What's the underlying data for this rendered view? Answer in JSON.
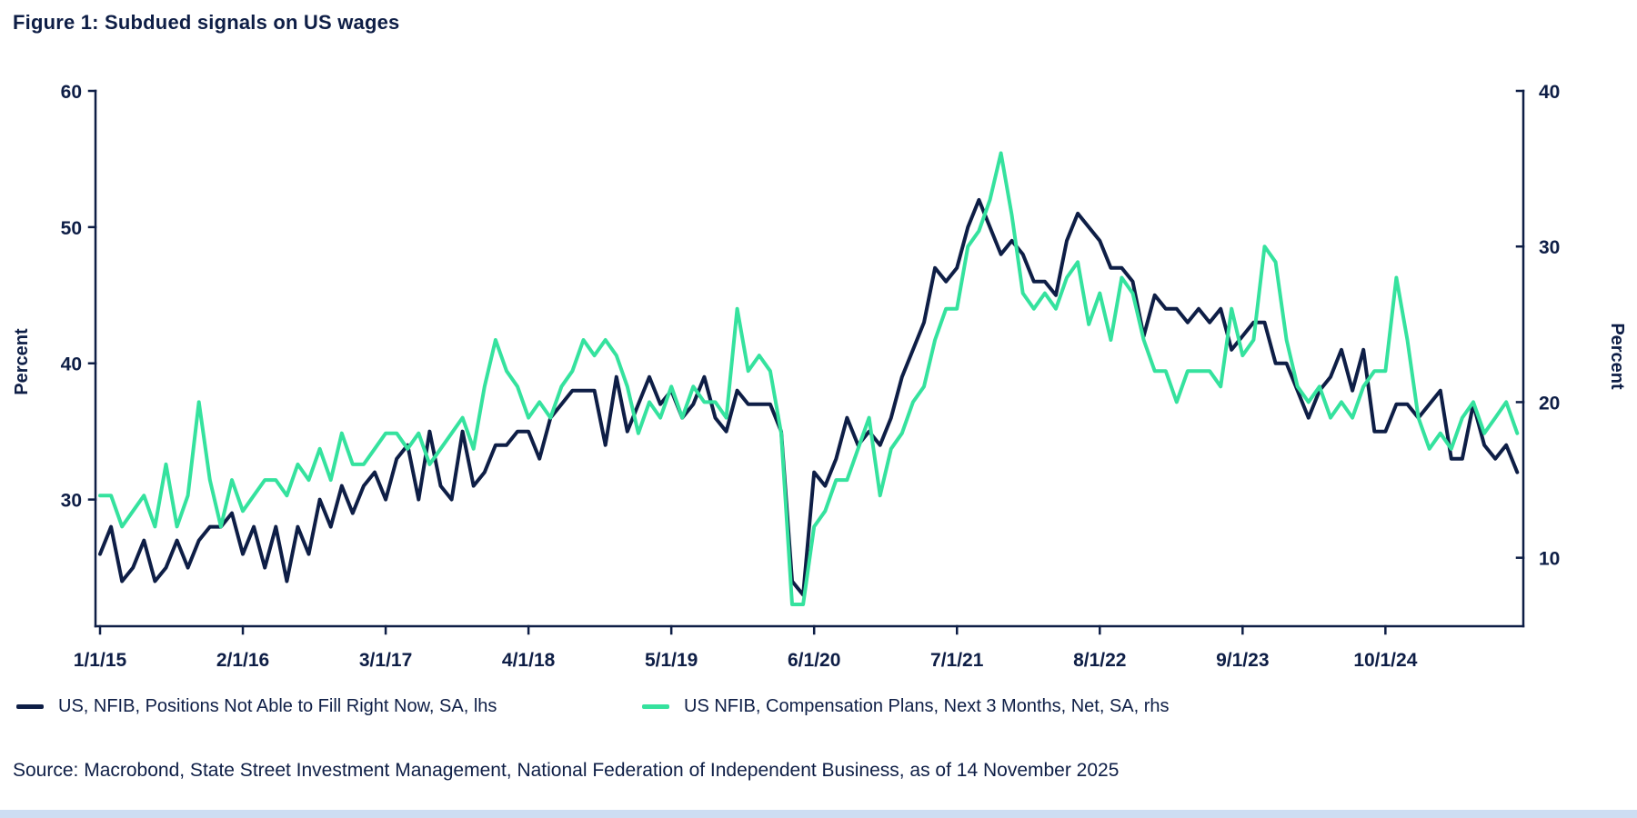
{
  "title": "Figure 1: Subdued signals on US wages",
  "source": "Source: Macrobond, State Street Investment Management, National Federation of Independent Business, as of 14 November 2025",
  "colors": {
    "navy": "#0e1e46",
    "green": "#35e29e",
    "text": "#0e1e46",
    "footer_bar": "#cdddf2"
  },
  "legend": [
    {
      "label": "US, NFIB, Positions Not Able to Fill Right Now, SA, lhs",
      "color": "#0e1e46"
    },
    {
      "label": "US NFIB, Compensation Plans, Next 3 Months, Net, SA, rhs",
      "color": "#35e29e"
    }
  ],
  "chart_data": {
    "type": "line",
    "title": "Figure 1: Subdued signals on US wages",
    "x_frequency": "monthly",
    "x_start": "Jan 2015",
    "x_end": "Oct 2025",
    "x_tick_labels": [
      "1/1/15",
      "2/1/16",
      "3/1/17",
      "4/1/18",
      "5/1/19",
      "6/1/20",
      "7/1/21",
      "8/1/22",
      "9/1/23",
      "10/1/24"
    ],
    "x_tick_month_indices": [
      0,
      13,
      26,
      39,
      52,
      65,
      78,
      91,
      104,
      117
    ],
    "grid": false,
    "legend_position": "bottom",
    "left_axis": {
      "label": "Percent",
      "ticks": [
        60,
        50,
        40,
        30
      ],
      "min": 20.7,
      "max": 60
    },
    "right_axis": {
      "label": "Percent",
      "ticks": [
        40,
        30,
        20,
        10
      ],
      "min": 5.6,
      "max": 40
    },
    "series": [
      {
        "name": "US, NFIB, Positions Not Able to Fill Right Now, SA, lhs",
        "axis": "left",
        "color": "#0e1e46",
        "values": [
          26,
          28,
          24,
          25,
          27,
          24,
          25,
          27,
          25,
          27,
          28,
          28,
          29,
          26,
          28,
          25,
          28,
          24,
          28,
          26,
          30,
          28,
          31,
          29,
          31,
          32,
          30,
          33,
          34,
          30,
          35,
          31,
          30,
          35,
          31,
          32,
          34,
          34,
          35,
          35,
          33,
          36,
          37,
          38,
          38,
          38,
          34,
          39,
          35,
          37,
          39,
          37,
          38,
          36,
          37,
          39,
          36,
          35,
          38,
          37,
          37,
          37,
          35,
          24,
          23,
          32,
          31,
          33,
          36,
          34,
          35,
          34,
          36,
          39,
          41,
          43,
          47,
          46,
          47,
          50,
          52,
          50,
          48,
          49,
          48,
          46,
          46,
          45,
          49,
          51,
          50,
          49,
          47,
          47,
          46,
          42,
          45,
          44,
          44,
          43,
          44,
          43,
          44,
          41,
          42,
          43,
          43,
          40,
          40,
          38,
          36,
          38,
          39,
          41,
          38,
          41,
          35,
          35,
          37,
          37,
          36,
          37,
          38,
          33,
          33,
          37,
          34,
          33,
          34,
          32
        ]
      },
      {
        "name": "US NFIB, Compensation Plans, Next 3 Months, Net, SA, rhs",
        "axis": "right",
        "color": "#35e29e",
        "values": [
          14,
          14,
          12,
          13,
          14,
          12,
          16,
          12,
          14,
          20,
          15,
          12,
          15,
          13,
          14,
          15,
          15,
          14,
          16,
          15,
          17,
          15,
          18,
          16,
          16,
          17,
          18,
          18,
          17,
          18,
          16,
          17,
          18,
          19,
          17,
          21,
          24,
          22,
          21,
          19,
          20,
          19,
          21,
          22,
          24,
          23,
          24,
          23,
          21,
          18,
          20,
          19,
          21,
          19,
          21,
          20,
          20,
          19,
          26,
          22,
          23,
          22,
          18,
          7,
          7,
          12,
          13,
          15,
          15,
          17,
          19,
          14,
          17,
          18,
          20,
          21,
          24,
          26,
          26,
          30,
          31,
          33,
          36,
          32,
          27,
          26,
          27,
          26,
          28,
          29,
          25,
          27,
          24,
          28,
          27,
          24,
          22,
          22,
          20,
          22,
          22,
          22,
          21,
          26,
          23,
          24,
          30,
          29,
          24,
          21,
          20,
          21,
          19,
          20,
          19,
          21,
          22,
          22,
          28,
          24,
          19,
          17,
          18,
          17,
          19,
          20,
          18,
          19,
          20,
          18
        ]
      }
    ]
  }
}
